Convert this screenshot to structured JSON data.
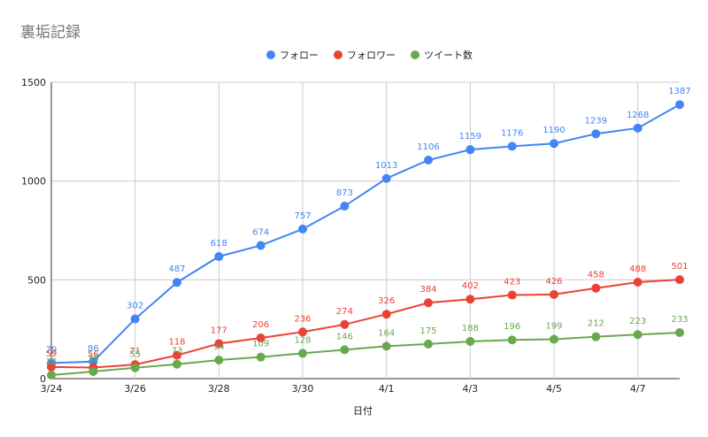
{
  "chart_data": {
    "type": "line",
    "title": "裏垢記録",
    "xlabel": "日付",
    "ylabel": "",
    "ylim": [
      0,
      1500
    ],
    "y_ticks": [
      0,
      500,
      1000,
      1500
    ],
    "grid": true,
    "legend": "top",
    "categories": [
      "3/24",
      "3/25",
      "3/26",
      "3/27",
      "3/28",
      "3/29",
      "3/30",
      "3/31",
      "4/1",
      "4/2",
      "4/3",
      "4/4",
      "4/5",
      "4/6",
      "4/7",
      "4/8"
    ],
    "x_tick_labels": [
      "3/24",
      "3/26",
      "3/28",
      "3/30",
      "4/1",
      "4/3",
      "4/5",
      "4/7"
    ],
    "series": [
      {
        "name": "フォロー",
        "color": "#4285f4",
        "values": [
          79,
          86,
          302,
          487,
          618,
          674,
          757,
          873,
          1013,
          1106,
          1159,
          1176,
          1190,
          1239,
          1268,
          1387
        ]
      },
      {
        "name": "フォロワー",
        "color": "#ea4335",
        "values": [
          59,
          56,
          71,
          118,
          177,
          206,
          236,
          274,
          326,
          384,
          402,
          423,
          426,
          458,
          488,
          501
        ]
      },
      {
        "name": "ツイート数",
        "color": "#6aa84f",
        "values": [
          18,
          36,
          55,
          73,
          94,
          109,
          128,
          146,
          164,
          175,
          188,
          196,
          199,
          212,
          223,
          233
        ]
      }
    ]
  }
}
